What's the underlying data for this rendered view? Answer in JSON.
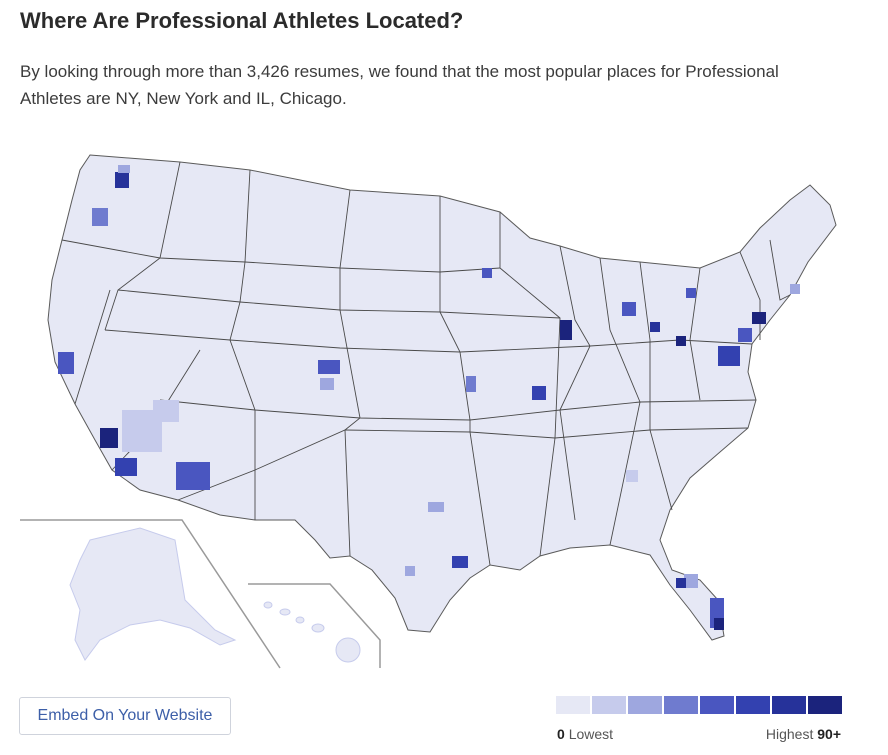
{
  "header": {
    "title": "Where Are Professional Athletes Located?",
    "description": "By looking through more than 3,426 resumes, we found that the most popular places for Professional Athletes are NY, New York and IL, Chicago."
  },
  "map": {
    "base_color": "#e6e8f5",
    "border_color": "#4a4a4a",
    "inset_line_color": "#9a9a9a"
  },
  "embed_button": {
    "label": "Embed On Your Website"
  },
  "legend": {
    "colors": [
      "#e6e8f5",
      "#c6cbec",
      "#9ea7df",
      "#6f7bcf",
      "#4a56c0",
      "#3341b0",
      "#26329a",
      "#1b237c"
    ],
    "low_value": "0",
    "low_label": "Lowest",
    "high_label": "Highest",
    "high_value": "90+"
  }
}
